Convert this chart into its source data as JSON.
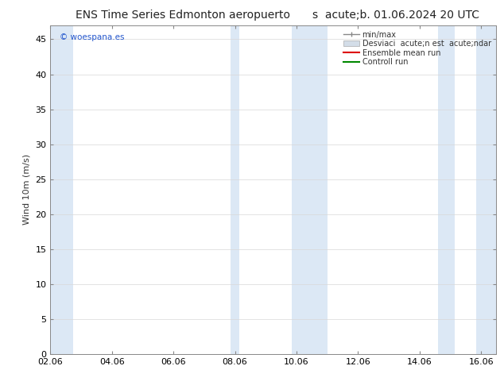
{
  "title_left": "ENS Time Series Edmonton aeropuerto",
  "title_right": "s  acute;b. 01.06.2024 20 UTC",
  "ylabel": "Wind 10m (m/s)",
  "watermark": "© woespana.es",
  "xlabel_ticks": [
    "02.06",
    "04.06",
    "06.06",
    "08.06",
    "10.06",
    "12.06",
    "14.06",
    "16.06"
  ],
  "xlim": [
    0,
    14.5
  ],
  "ylim": [
    0,
    47
  ],
  "yticks": [
    0,
    5,
    10,
    15,
    20,
    25,
    30,
    35,
    40,
    45
  ],
  "shaded_bands_x": [
    [
      0.0,
      0.75
    ],
    [
      5.85,
      6.15
    ],
    [
      7.85,
      9.0
    ],
    [
      12.6,
      13.15
    ],
    [
      13.85,
      14.5
    ]
  ],
  "shade_color": "#dce8f5",
  "background_color": "#ffffff",
  "legend_items": [
    {
      "label": "min/max",
      "color": "#b8cfe0",
      "type": "errbar"
    },
    {
      "label": "Desviaci  acute;n est  acute;ndar",
      "color": "#d3dde8",
      "type": "band"
    },
    {
      "label": "Ensemble mean run",
      "color": "#dd0000",
      "type": "line"
    },
    {
      "label": "Controll run",
      "color": "#008800",
      "type": "line"
    }
  ],
  "tick_positions_x": [
    0,
    2,
    4,
    6,
    8,
    10,
    12,
    14
  ],
  "grid_color": "#d8d8d8",
  "title_fontsize": 10,
  "axis_fontsize": 8,
  "watermark_color": "#2255cc",
  "spine_color": "#888888"
}
